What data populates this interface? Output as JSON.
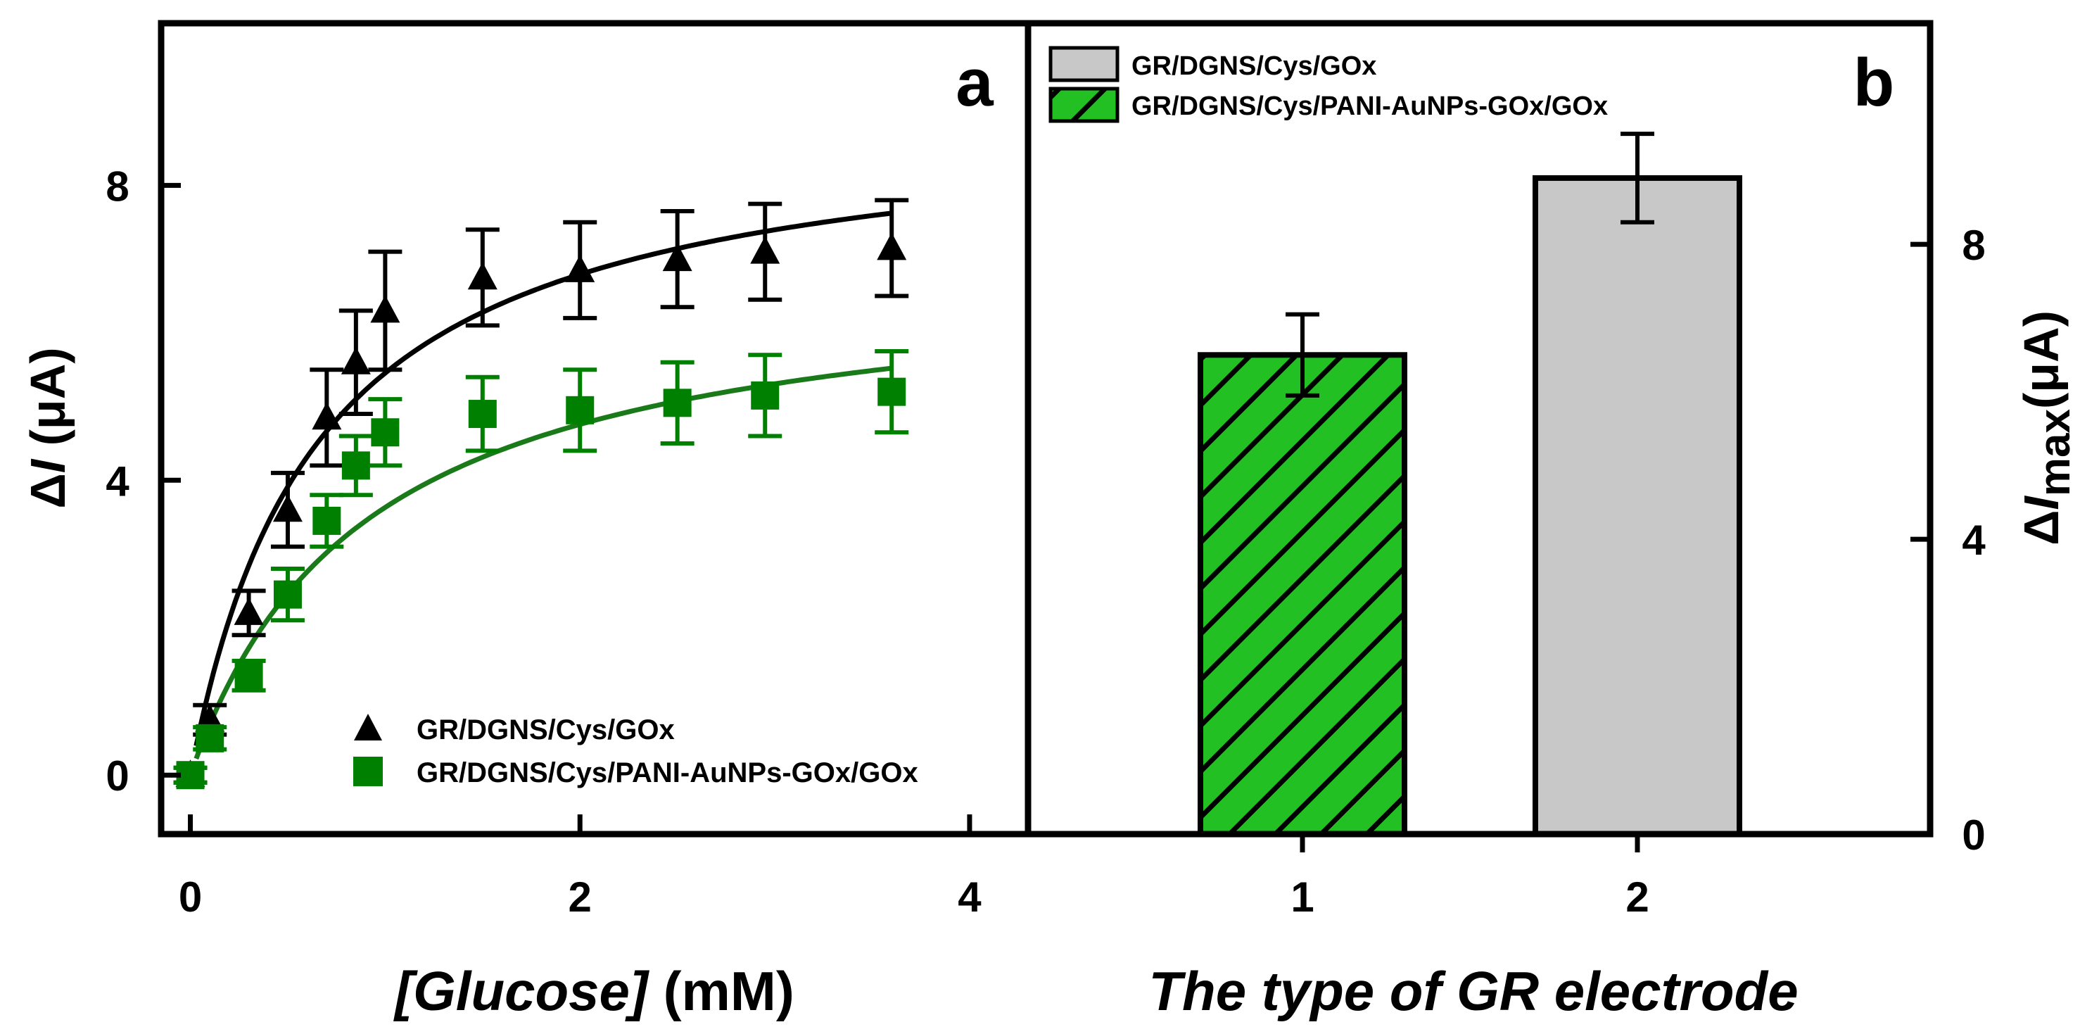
{
  "chart_data": [
    {
      "type": "scatter",
      "panel_label": "a",
      "xlabel_italic": "[Glucose]",
      "xlabel_unit": "(mM)",
      "ylabel_delta": "Δ",
      "ylabel_var": "I",
      "ylabel_unit": "(μA)",
      "xlim": [
        -0.15,
        4.3
      ],
      "ylim": [
        -0.8,
        10.2
      ],
      "xticks": [
        0,
        2,
        4
      ],
      "yticks": [
        0,
        4,
        8
      ],
      "legend_position": "bottom-right",
      "series": [
        {
          "name": "GR/DGNS/Cys/GOx",
          "marker": "triangle",
          "color": "#000000",
          "x": [
            0.0,
            0.1,
            0.3,
            0.5,
            0.7,
            0.85,
            1.0,
            1.5,
            2.0,
            2.5,
            2.95,
            3.6
          ],
          "y": [
            0.0,
            0.75,
            2.2,
            3.6,
            4.85,
            5.6,
            6.3,
            6.75,
            6.85,
            7.0,
            7.1,
            7.15
          ],
          "err": [
            0.1,
            0.2,
            0.3,
            0.5,
            0.65,
            0.7,
            0.8,
            0.65,
            0.65,
            0.65,
            0.65,
            0.65
          ],
          "fit": {
            "vmax": 9.0,
            "km": 0.65,
            "color": "#000000"
          }
        },
        {
          "name": "GR/DGNS/Cys/PANI-AuNPs-GOx/GOx",
          "marker": "square",
          "color": "#008000",
          "x": [
            0.0,
            0.1,
            0.3,
            0.5,
            0.7,
            0.85,
            1.0,
            1.5,
            2.0,
            2.5,
            2.95,
            3.6
          ],
          "y": [
            0.0,
            0.5,
            1.35,
            2.45,
            3.45,
            4.2,
            4.65,
            4.9,
            4.95,
            5.05,
            5.15,
            5.2
          ],
          "err": [
            0.1,
            0.15,
            0.2,
            0.35,
            0.35,
            0.4,
            0.45,
            0.5,
            0.55,
            0.55,
            0.55,
            0.55
          ],
          "fit": {
            "vmax": 6.9,
            "km": 0.9,
            "color": "#1a7a1a"
          }
        }
      ]
    },
    {
      "type": "bar",
      "panel_label": "b",
      "xlabel": "The type of GR electrode",
      "ylabel_delta": "Δ",
      "ylabel_var": "I",
      "ylabel_sub": "max",
      "ylabel_unit": "(μA)",
      "ylim": [
        0,
        11
      ],
      "yticks": [
        0,
        4,
        8
      ],
      "categories": [
        "1",
        "2"
      ],
      "legend_position": "top-left",
      "legend": [
        {
          "name": "GR/DGNS/Cys/GOx",
          "fill": "#c8c8c8",
          "hatch": false
        },
        {
          "name": "GR/DGNS/Cys/PANI-AuNPs-GOx/GOx",
          "fill": "#22c022",
          "hatch": true
        }
      ],
      "bars": [
        {
          "category": "1",
          "value": 6.5,
          "err": 0.55,
          "fill": "#22c022",
          "hatch": true
        },
        {
          "category": "2",
          "value": 8.9,
          "err": 0.6,
          "fill": "#c8c8c8",
          "hatch": false
        }
      ]
    }
  ]
}
